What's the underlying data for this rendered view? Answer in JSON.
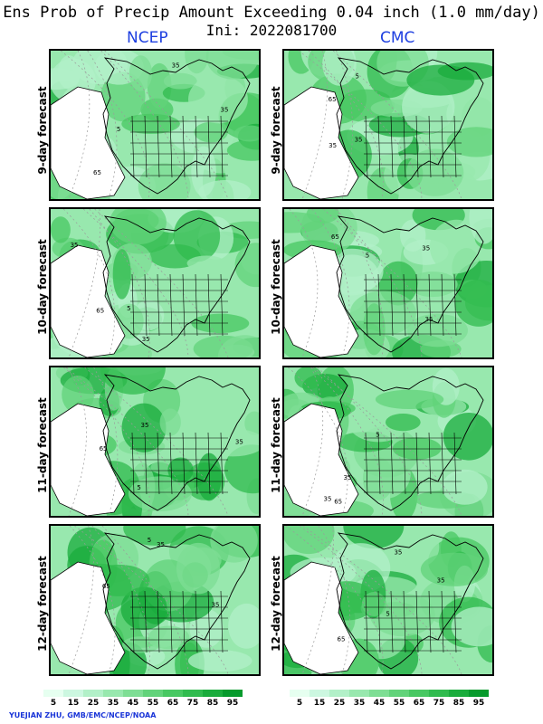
{
  "title_line1": "Ens Prob of Precip Amount Exceeding 0.04 inch (1.0 mm/day)",
  "title_line2": "Ini: 2022081700",
  "columns": [
    "NCEP",
    "CMC"
  ],
  "rows": [
    "9-day forecast",
    "10-day forecast",
    "11-day forecast",
    "12-day forecast"
  ],
  "colorbar": {
    "labels": [
      "5",
      "15",
      "25",
      "35",
      "45",
      "55",
      "65",
      "75",
      "85",
      "95"
    ],
    "colors": [
      "#e6fff0",
      "#ccf7e0",
      "#b2f0c8",
      "#98e8ae",
      "#7ede94",
      "#62d37a",
      "#48c862",
      "#30bb4e",
      "#1aac3c",
      "#069a2c"
    ]
  },
  "credit": "YUEJIAN ZHU, GMB/EMC/NCEP/NOAA",
  "contour_labels": [
    "35",
    "65",
    "5"
  ]
}
